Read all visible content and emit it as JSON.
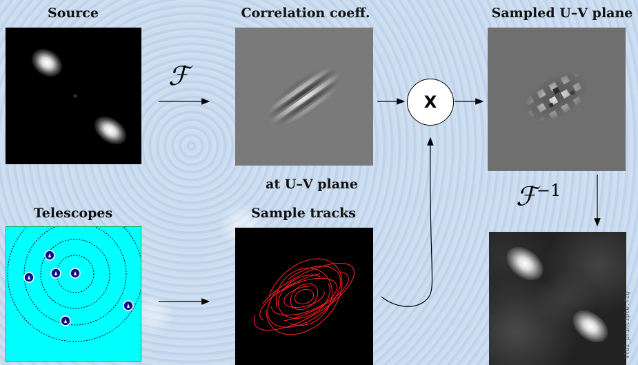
{
  "labels": {
    "source": "Source",
    "correlation": "Correlation coeff.",
    "correlation_sub": "at U–V plane",
    "sampled": "Sampled U–V plane",
    "telescopes": "Telescopes",
    "tracks": "Sample tracks"
  },
  "operators": {
    "fourier": "ℱ",
    "inverse_exponent": "−1",
    "multiply": "X"
  },
  "side_text": "vlbi_principle.fig",
  "colors": {
    "telescope_bg": "#00ffff",
    "telescope_marker": "#10108a",
    "track_color": "#ff2020"
  }
}
